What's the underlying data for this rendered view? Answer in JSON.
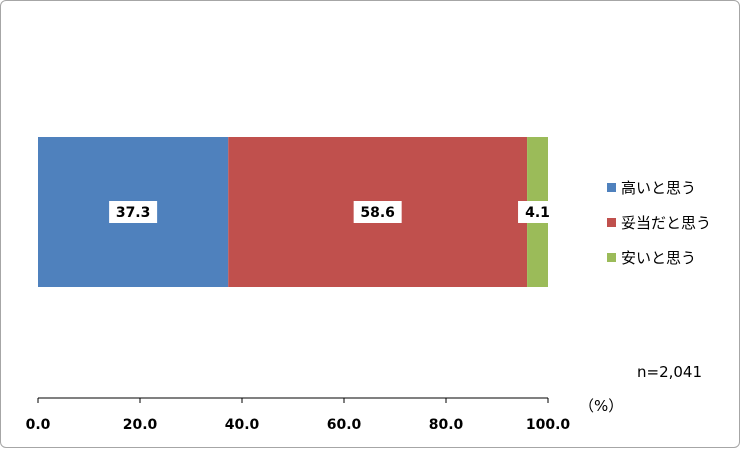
{
  "chart_data": {
    "type": "bar",
    "orientation": "horizontal",
    "stacked": true,
    "categories": [
      ""
    ],
    "series": [
      {
        "name": "高いと思う",
        "values": [
          37.3
        ],
        "color": "#4f81bd"
      },
      {
        "name": "妥当だと思う",
        "values": [
          58.6
        ],
        "color": "#c0504d"
      },
      {
        "name": "安いと思う",
        "values": [
          4.1
        ],
        "color": "#9bbb59"
      }
    ],
    "xlim": [
      0,
      100
    ],
    "x_ticks": [
      "0.0",
      "20.0",
      "40.0",
      "60.0",
      "80.0",
      "100.0"
    ],
    "unit_label": "（%）",
    "sample_note": "n=2,041",
    "legend_position": "right",
    "grid": false
  }
}
